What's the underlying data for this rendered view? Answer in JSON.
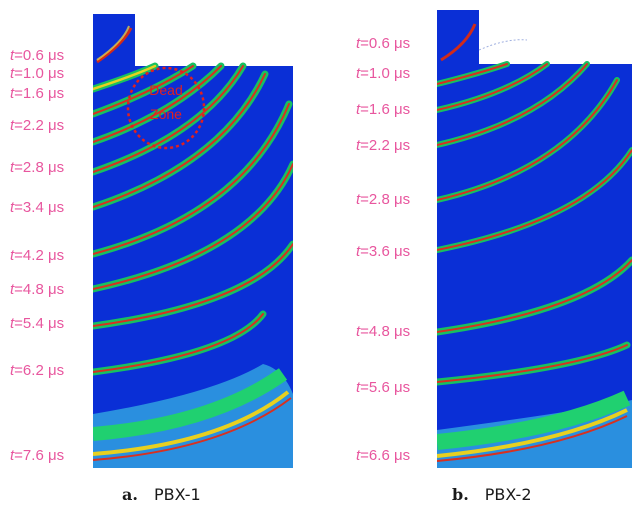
{
  "panels": [
    {
      "letter": "a.",
      "name": "PBX-1",
      "labels": [
        {
          "t": "t",
          "val": "=0.6 μs"
        },
        {
          "t": "t",
          "val": "=1.0 μs"
        },
        {
          "t": "t",
          "val": "=1.6 μs"
        },
        {
          "t": "t",
          "val": "=2.2 μs"
        },
        {
          "t": "t",
          "val": "=2.8 μs"
        },
        {
          "t": "t",
          "val": "=3.4 μs"
        },
        {
          "t": "t",
          "val": "=4.2 μs"
        },
        {
          "t": "t",
          "val": "=4.8 μs"
        },
        {
          "t": "t",
          "val": "=5.4 μs"
        },
        {
          "t": "t",
          "val": "=6.2 μs"
        },
        {
          "t": "t",
          "val": "=7.6 μs"
        }
      ],
      "dead_zone": {
        "line1": "Dead",
        "line2": "Zone"
      }
    },
    {
      "letter": "b.",
      "name": "PBX-2",
      "labels": [
        {
          "t": "t",
          "val": "=0.6 μs"
        },
        {
          "t": "t",
          "val": "=1.0 μs"
        },
        {
          "t": "t",
          "val": "=1.6 μs"
        },
        {
          "t": "t",
          "val": "=2.2 μs"
        },
        {
          "t": "t",
          "val": "=2.8 μs"
        },
        {
          "t": "t",
          "val": "=3.6 μs"
        },
        {
          "t": "t",
          "val": "=4.8 μs"
        },
        {
          "t": "t",
          "val": "=5.6 μs"
        },
        {
          "t": "t",
          "val": "=6.6 μs"
        }
      ]
    }
  ],
  "colors": {
    "label": "#e8569e",
    "background": "#0a2fd6",
    "dead_zone": "#e02020"
  }
}
